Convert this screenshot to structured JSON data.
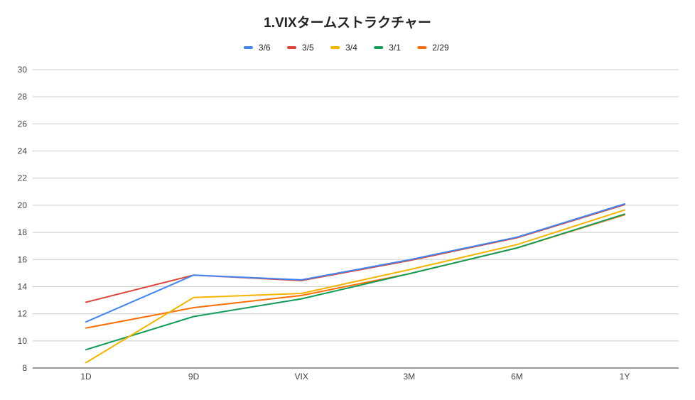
{
  "chart_data": {
    "type": "line",
    "title": "1.VIXタームストラクチャー",
    "xlabel": "",
    "ylabel": "",
    "categories": [
      "1D",
      "9D",
      "VIX",
      "3M",
      "6M",
      "1Y"
    ],
    "ylim": [
      8,
      30
    ],
    "yticks": [
      8,
      10,
      12,
      14,
      16,
      18,
      20,
      22,
      24,
      26,
      28,
      30
    ],
    "grid": true,
    "legend_position": "top",
    "series": [
      {
        "name": "3/6",
        "color": "#4285f4",
        "values": [
          11.4,
          14.85,
          14.5,
          15.98,
          17.65,
          20.1
        ]
      },
      {
        "name": "3/5",
        "color": "#db4437",
        "values": [
          12.85,
          14.85,
          14.45,
          15.92,
          17.6,
          20.05
        ]
      },
      {
        "name": "3/4",
        "color": "#f4b400",
        "values": [
          8.4,
          13.2,
          13.5,
          15.25,
          17.1,
          19.65
        ]
      },
      {
        "name": "3/1",
        "color": "#0f9d58",
        "values": [
          9.35,
          11.8,
          13.1,
          14.95,
          16.85,
          19.35
        ]
      },
      {
        "name": "2/29",
        "color": "#ff6d01",
        "values": [
          10.95,
          12.45,
          13.35,
          14.95,
          16.85,
          19.3
        ]
      }
    ]
  }
}
